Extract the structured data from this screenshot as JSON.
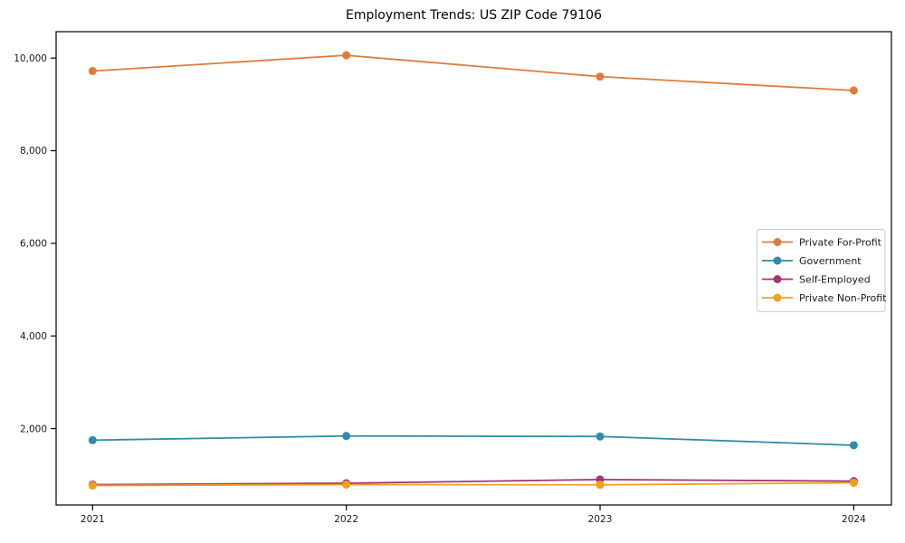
{
  "chart_data": {
    "type": "line",
    "title": "Employment Trends: US ZIP Code 79106",
    "x": [
      2021,
      2022,
      2023,
      2024
    ],
    "xtick_labels": [
      "2021",
      "2022",
      "2023",
      "2024"
    ],
    "yticks": [
      2000,
      4000,
      6000,
      8000,
      10000
    ],
    "ytick_labels": [
      "2,000",
      "4,000",
      "6,000",
      "8,000",
      "10,000"
    ],
    "ylim": [
      350,
      10570
    ],
    "grid": false,
    "marker": "circle",
    "legend_position": "center right",
    "legend_border_color": "#c9c9c9",
    "axis_color": "#000000",
    "series": [
      {
        "name": "Private For-Profit",
        "color": "#E07B3C",
        "values": [
          9720,
          10060,
          9600,
          9300
        ]
      },
      {
        "name": "Government",
        "color": "#2E8CAB",
        "values": [
          1750,
          1840,
          1830,
          1640
        ]
      },
      {
        "name": "Self-Employed",
        "color": "#A23577",
        "values": [
          790,
          820,
          900,
          865
        ]
      },
      {
        "name": "Private Non-Profit",
        "color": "#F0A01D",
        "values": [
          770,
          790,
          785,
          830
        ]
      }
    ]
  }
}
